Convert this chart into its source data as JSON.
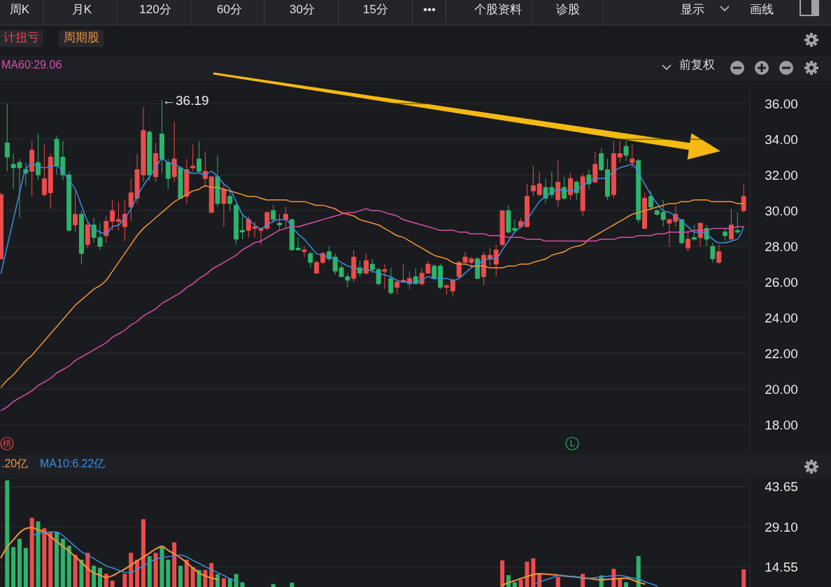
{
  "chart_data": [
    {
      "type": "candlestick",
      "annotations": [
        "周K",
        "月K",
        "120分",
        "60分",
        "30分",
        "15分",
        "•••",
        "个股资料",
        "诊股",
        "显示",
        "画线",
        "计扭亏",
        "周期股",
        "MA60:29.06",
        "前复权",
        "榜",
        "L",
        "←36.19"
      ],
      "categories": [
        null,
        null,
        null,
        null,
        null,
        null,
        null,
        null,
        null,
        null,
        null,
        null,
        null,
        null,
        null,
        null,
        null,
        null,
        null,
        null,
        null,
        null,
        null,
        null,
        null,
        null,
        null,
        null,
        null,
        null,
        null,
        null,
        null,
        null,
        null,
        null,
        null,
        null,
        null,
        null,
        null,
        null,
        null,
        null,
        null,
        null,
        null,
        null,
        null,
        null,
        null,
        null,
        null,
        null,
        null,
        null,
        null,
        null,
        null,
        null,
        null,
        null,
        null,
        null,
        null,
        null,
        null,
        null,
        null,
        null,
        null,
        null,
        null,
        null,
        null,
        null,
        null,
        null,
        null,
        null,
        null,
        null,
        null,
        null,
        null,
        null,
        null,
        null,
        null,
        null,
        null,
        null,
        null,
        null,
        null,
        null,
        null,
        null,
        null,
        null,
        null,
        null,
        null,
        null,
        null,
        null,
        null,
        null,
        null,
        null,
        null,
        null,
        null,
        null,
        null,
        null,
        null,
        null,
        null,
        null,
        null
      ],
      "ohlc": [
        [
          27.3,
          31.0,
          27.3,
          30.9
        ],
        [
          33.8,
          36.0,
          32.2,
          33.0
        ],
        [
          32.6,
          33.2,
          31.2,
          32.4
        ],
        [
          32.7,
          32.9,
          29.6,
          32.4
        ],
        [
          32.3,
          32.7,
          31.4,
          32.1
        ],
        [
          32.2,
          33.9,
          30.8,
          33.4
        ],
        [
          32.7,
          34.3,
          31.7,
          32.0
        ],
        [
          30.9,
          33.7,
          30.8,
          31.8
        ],
        [
          31.0,
          33.2,
          30.1,
          33.0
        ],
        [
          34.0,
          34.2,
          32.0,
          32.5
        ],
        [
          33.0,
          33.9,
          31.7,
          32.0
        ],
        [
          32.0,
          32.2,
          28.8,
          28.9
        ],
        [
          29.2,
          31.1,
          28.8,
          29.8
        ],
        [
          29.8,
          30.0,
          27.0,
          27.6
        ],
        [
          28.1,
          29.4,
          27.9,
          29.2
        ],
        [
          29.2,
          29.6,
          28.2,
          28.5
        ],
        [
          28.5,
          29.3,
          27.8,
          28.0
        ],
        [
          28.6,
          29.7,
          28.2,
          29.4
        ],
        [
          29.4,
          30.6,
          28.9,
          30.0
        ],
        [
          29.4,
          30.5,
          28.9,
          29.5
        ],
        [
          29.1,
          30.6,
          28.3,
          29.8
        ],
        [
          30.2,
          31.8,
          29.4,
          31.0
        ],
        [
          30.7,
          33.2,
          30.4,
          32.3
        ],
        [
          32.0,
          35.8,
          31.6,
          34.5
        ],
        [
          34.4,
          34.5,
          31.7,
          32.0
        ],
        [
          31.9,
          33.8,
          31.6,
          33.2
        ],
        [
          34.3,
          36.19,
          32.1,
          32.9
        ],
        [
          32.7,
          32.9,
          31.2,
          31.8
        ],
        [
          31.9,
          35.0,
          31.6,
          32.9
        ],
        [
          32.4,
          32.5,
          30.7,
          30.7
        ],
        [
          30.8,
          32.9,
          30.4,
          32.3
        ],
        [
          32.4,
          33.7,
          32.2,
          32.5
        ],
        [
          32.9,
          33.9,
          32.1,
          32.2
        ],
        [
          31.8,
          33.3,
          31.3,
          32.2
        ],
        [
          29.9,
          31.9,
          29.9,
          31.9
        ],
        [
          31.9,
          33.1,
          30.2,
          30.4
        ],
        [
          30.4,
          31.5,
          29.1,
          31.2
        ],
        [
          30.8,
          31.1,
          30.0,
          30.4
        ],
        [
          30.3,
          30.4,
          28.1,
          28.4
        ],
        [
          28.9,
          29.8,
          28.4,
          28.8
        ],
        [
          28.9,
          29.7,
          28.5,
          29.5
        ],
        [
          29.0,
          29.4,
          28.5,
          29.1
        ],
        [
          28.9,
          29.0,
          28.1,
          29.0
        ],
        [
          29.0,
          29.9,
          28.9,
          29.9
        ],
        [
          30.0,
          30.3,
          29.3,
          29.5
        ],
        [
          29.3,
          29.8,
          28.9,
          29.2
        ],
        [
          29.5,
          30.2,
          29.0,
          29.8
        ],
        [
          29.5,
          29.5,
          27.8,
          27.8
        ],
        [
          27.9,
          28.5,
          27.8,
          27.8
        ],
        [
          27.7,
          28.0,
          27.4,
          27.8
        ],
        [
          27.6,
          27.7,
          26.8,
          27.1
        ],
        [
          26.5,
          27.2,
          26.5,
          27.1
        ],
        [
          27.1,
          27.7,
          27.0,
          27.6
        ],
        [
          27.7,
          28.0,
          27.2,
          27.3
        ],
        [
          27.4,
          27.6,
          26.4,
          26.6
        ],
        [
          26.8,
          27.0,
          26.3,
          26.3
        ],
        [
          26.3,
          26.5,
          25.7,
          26.1
        ],
        [
          26.2,
          27.8,
          26.0,
          27.4
        ],
        [
          26.8,
          27.2,
          26.3,
          26.5
        ],
        [
          26.5,
          27.6,
          26.4,
          27.2
        ],
        [
          27.0,
          27.3,
          26.5,
          26.7
        ],
        [
          26.7,
          26.8,
          25.8,
          25.9
        ],
        [
          26.6,
          27.0,
          25.6,
          26.7
        ],
        [
          26.2,
          26.8,
          25.3,
          25.4
        ],
        [
          25.7,
          26.1,
          25.3,
          26.0
        ],
        [
          26.0,
          27.0,
          26.0,
          26.1
        ],
        [
          25.9,
          26.6,
          25.6,
          26.2
        ],
        [
          26.3,
          26.8,
          25.9,
          25.9
        ],
        [
          25.9,
          26.8,
          25.8,
          26.5
        ],
        [
          26.5,
          27.2,
          26.5,
          27.0
        ],
        [
          26.9,
          27.0,
          26.1,
          26.2
        ],
        [
          26.9,
          27.0,
          25.6,
          25.7
        ],
        [
          25.7,
          25.9,
          25.3,
          25.8
        ],
        [
          25.5,
          26.2,
          25.2,
          26.1
        ],
        [
          26.3,
          27.2,
          26.2,
          27.1
        ],
        [
          27.1,
          27.7,
          27.1,
          27.4
        ],
        [
          27.1,
          27.4,
          26.8,
          27.3
        ],
        [
          27.3,
          27.4,
          26.2,
          26.2
        ],
        [
          26.3,
          27.7,
          25.8,
          27.5
        ],
        [
          27.3,
          27.9,
          26.9,
          27.5
        ],
        [
          27.0,
          28.1,
          26.3,
          27.8
        ],
        [
          28.1,
          30.0,
          28.0,
          30.0
        ],
        [
          30.0,
          30.3,
          28.7,
          28.8
        ],
        [
          29.0,
          29.5,
          28.7,
          28.9
        ],
        [
          29.1,
          29.6,
          29.0,
          29.4
        ],
        [
          29.1,
          31.5,
          29.1,
          30.8
        ],
        [
          31.1,
          32.5,
          30.8,
          31.4
        ],
        [
          30.9,
          32.2,
          30.8,
          31.5
        ],
        [
          31.3,
          31.8,
          30.4,
          30.7
        ],
        [
          31.3,
          32.2,
          30.7,
          30.9
        ],
        [
          30.6,
          32.8,
          30.2,
          31.6
        ],
        [
          31.3,
          31.9,
          30.6,
          30.7
        ],
        [
          30.9,
          32.1,
          30.6,
          31.8
        ],
        [
          31.6,
          31.7,
          30.6,
          31.0
        ],
        [
          30.0,
          32.1,
          29.7,
          31.9
        ],
        [
          32.0,
          32.3,
          31.2,
          31.5
        ],
        [
          31.6,
          33.3,
          31.6,
          32.6
        ],
        [
          33.2,
          33.5,
          32.2,
          32.3
        ],
        [
          32.3,
          32.9,
          30.6,
          30.8
        ],
        [
          30.9,
          33.9,
          30.7,
          33.2
        ],
        [
          33.0,
          33.9,
          32.7,
          33.2
        ],
        [
          33.6,
          33.9,
          32.8,
          33.1
        ],
        [
          32.7,
          33.7,
          32.4,
          32.9
        ],
        [
          32.8,
          32.9,
          29.3,
          29.5
        ],
        [
          29.0,
          31.0,
          29.0,
          30.7
        ],
        [
          30.8,
          31.1,
          30.0,
          30.2
        ],
        [
          30.0,
          30.1,
          29.7,
          29.8
        ],
        [
          29.9,
          30.6,
          29.1,
          29.5
        ],
        [
          29.3,
          29.5,
          28.0,
          29.5
        ],
        [
          29.4,
          30.3,
          29.1,
          29.8
        ],
        [
          29.5,
          29.5,
          28.1,
          28.2
        ],
        [
          27.9,
          28.9,
          27.7,
          28.4
        ],
        [
          28.5,
          29.2,
          28.3,
          28.4
        ],
        [
          28.5,
          29.3,
          28.0,
          29.3
        ],
        [
          29.0,
          29.2,
          28.0,
          28.4
        ],
        [
          28.0,
          28.2,
          27.1,
          27.3
        ],
        [
          27.1,
          28.1,
          27.0,
          27.7
        ],
        [
          28.8,
          29.0,
          28.3,
          28.6
        ],
        [
          28.4,
          30.1,
          28.4,
          29.2
        ],
        [
          28.9,
          29.9,
          28.7,
          28.8
        ],
        [
          30.0,
          31.5,
          29.9,
          30.8
        ]
      ],
      "colors": [
        "#ec4c4c",
        "#2db46b",
        "#2db46b",
        "#2db46b",
        "#2db46b",
        "#ec4c4c",
        "#2db46b",
        "#ec4c4c",
        "#ec4c4c",
        "#2db46b",
        "#2db46b",
        "#2db46b",
        "#ec4c4c",
        "#2db46b",
        "#ec4c4c",
        "#2db46b",
        "#2db46b",
        "#ec4c4c",
        "#ec4c4c",
        "#ec4c4c",
        "#ec4c4c",
        "#ec4c4c",
        "#ec4c4c",
        "#ec4c4c",
        "#2db46b",
        "#ec4c4c",
        "#2db46b",
        "#2db46b",
        "#ec4c4c",
        "#2db46b",
        "#ec4c4c",
        "#ec4c4c",
        "#2db46b",
        "#ec4c4c",
        "#ec4c4c",
        "#2db46b",
        "#ec4c4c",
        "#2db46b",
        "#2db46b",
        "#2db46b",
        "#ec4c4c",
        "#ec4c4c",
        "#ec4c4c",
        "#ec4c4c",
        "#2db46b",
        "#2db46b",
        "#ec4c4c",
        "#2db46b",
        "#2db46b",
        "#ec4c4c",
        "#2db46b",
        "#ec4c4c",
        "#ec4c4c",
        "#2db46b",
        "#2db46b",
        "#2db46b",
        "#2db46b",
        "#ec4c4c",
        "#2db46b",
        "#ec4c4c",
        "#2db46b",
        "#2db46b",
        "#ec4c4c",
        "#2db46b",
        "#ec4c4c",
        "#ec4c4c",
        "#ec4c4c",
        "#2db46b",
        "#ec4c4c",
        "#ec4c4c",
        "#2db46b",
        "#2db46b",
        "#ec4c4c",
        "#ec4c4c",
        "#ec4c4c",
        "#ec4c4c",
        "#ec4c4c",
        "#2db46b",
        "#ec4c4c",
        "#ec4c4c",
        "#ec4c4c",
        "#ec4c4c",
        "#2db46b",
        "#2db46b",
        "#ec4c4c",
        "#ec4c4c",
        "#ec4c4c",
        "#ec4c4c",
        "#2db46b",
        "#2db46b",
        "#ec4c4c",
        "#2db46b",
        "#ec4c4c",
        "#2db46b",
        "#ec4c4c",
        "#2db46b",
        "#ec4c4c",
        "#2db46b",
        "#2db46b",
        "#ec4c4c",
        "#ec4c4c",
        "#2db46b",
        "#ec4c4c",
        "#2db46b",
        "#ec4c4c",
        "#2db46b",
        "#2db46b",
        "#2db46b",
        "#ec4c4c",
        "#ec4c4c",
        "#2db46b",
        "#ec4c4c",
        "#2db46b",
        "#ec4c4c",
        "#2db46b",
        "#2db46b",
        "#ec4c4c",
        "#2db46b",
        "#ec4c4c",
        "#2db46b",
        "#ec4c4c"
      ],
      "series": [
        {
          "type": "line",
          "color": "#3b8fe3",
          "values": [
            26.5,
            28.0,
            29.5,
            31.0,
            32.3,
            32.6,
            32.5,
            32.4,
            32.5,
            32.5,
            32.2,
            31.7,
            31.2,
            30.3,
            29.4,
            29.0,
            28.8,
            28.7,
            29.1,
            29.2,
            29.6,
            30.1,
            30.8,
            31.4,
            31.9,
            32.4,
            32.9,
            32.7,
            32.6,
            32.4,
            32.2,
            32.1,
            32.1,
            32.0,
            32.2,
            31.9,
            31.5,
            31.2,
            30.5,
            29.8,
            29.5,
            29.2,
            29.0,
            29.2,
            29.4,
            29.5,
            29.5,
            29.1,
            28.7,
            28.4,
            28.0,
            27.6,
            27.5,
            27.4,
            27.3,
            27.1,
            26.9,
            26.8,
            26.7,
            26.7,
            26.6,
            26.5,
            26.4,
            26.3,
            26.1,
            26.0,
            26.0,
            26.0,
            26.1,
            26.3,
            26.2,
            26.2,
            26.2,
            26.1,
            26.2,
            26.5,
            26.8,
            27.0,
            27.2,
            27.3,
            27.3,
            27.8,
            28.3,
            28.8,
            29.1,
            29.5,
            30.0,
            30.5,
            30.8,
            31.0,
            31.2,
            31.1,
            31.1,
            31.2,
            31.4,
            31.6,
            31.8,
            31.8,
            31.9,
            32.2,
            32.4,
            32.5,
            32.6,
            32.1,
            31.5,
            30.9,
            30.4,
            30.0,
            29.9,
            29.7,
            29.4,
            29.1,
            28.8,
            28.8,
            28.7,
            28.4,
            28.2,
            28.2,
            28.3,
            28.4,
            29.1
          ]
        },
        {
          "type": "line",
          "color": "#f0953a",
          "values": [
            20.1,
            20.5,
            20.8,
            21.2,
            21.6,
            21.9,
            22.3,
            22.7,
            23.1,
            23.5,
            23.9,
            24.3,
            24.7,
            25.0,
            25.3,
            25.6,
            25.8,
            26.1,
            26.6,
            27.1,
            27.6,
            28.1,
            28.6,
            29.0,
            29.3,
            29.6,
            29.9,
            30.2,
            30.5,
            30.7,
            30.9,
            31.1,
            31.2,
            31.4,
            31.3,
            31.3,
            31.2,
            31.1,
            31.0,
            30.9,
            30.8,
            30.8,
            30.7,
            30.6,
            30.6,
            30.6,
            30.6,
            30.5,
            30.5,
            30.5,
            30.4,
            30.3,
            30.3,
            30.2,
            30.1,
            29.9,
            29.8,
            29.7,
            29.5,
            29.4,
            29.3,
            29.2,
            29.0,
            28.8,
            28.6,
            28.5,
            28.3,
            28.1,
            27.9,
            27.7,
            27.5,
            27.4,
            27.3,
            27.1,
            27.0,
            27.0,
            26.9,
            26.9,
            26.9,
            26.8,
            26.8,
            26.8,
            26.9,
            26.9,
            27.0,
            27.0,
            27.1,
            27.2,
            27.3,
            27.5,
            27.6,
            27.7,
            27.9,
            28.0,
            28.1,
            28.4,
            28.6,
            28.8,
            29.0,
            29.2,
            29.4,
            29.6,
            29.8,
            29.9,
            30.0,
            30.1,
            30.2,
            30.3,
            30.4,
            30.4,
            30.5,
            30.5,
            30.6,
            30.6,
            30.6,
            30.5,
            30.5,
            30.5,
            30.5,
            30.4,
            30.4
          ]
        },
        {
          "type": "line",
          "color": "#d94fa6",
          "values": [
            18.8,
            19.0,
            19.3,
            19.5,
            19.7,
            19.9,
            20.2,
            20.4,
            20.6,
            20.9,
            21.1,
            21.3,
            21.6,
            21.8,
            22.0,
            22.2,
            22.4,
            22.6,
            22.9,
            23.1,
            23.3,
            23.6,
            23.8,
            24.1,
            24.3,
            24.5,
            24.8,
            25.0,
            25.2,
            25.4,
            25.7,
            25.9,
            26.2,
            26.4,
            26.7,
            26.9,
            27.1,
            27.3,
            27.5,
            27.8,
            28.0,
            28.2,
            28.3,
            28.5,
            28.7,
            28.9,
            29.0,
            29.1,
            29.1,
            29.2,
            29.3,
            29.4,
            29.5,
            29.6,
            29.7,
            29.8,
            29.9,
            29.9,
            30.0,
            30.1,
            30.0,
            30.0,
            29.9,
            29.8,
            29.7,
            29.5,
            29.4,
            29.3,
            29.2,
            29.1,
            29.0,
            28.9,
            28.9,
            28.9,
            28.8,
            28.8,
            28.7,
            28.7,
            28.7,
            28.6,
            28.6,
            28.6,
            28.5,
            28.5,
            28.5,
            28.4,
            28.4,
            28.4,
            28.3,
            28.3,
            28.3,
            28.3,
            28.3,
            28.3,
            28.3,
            28.3,
            28.3,
            28.4,
            28.4,
            28.4,
            28.5,
            28.5,
            28.5,
            28.6,
            28.6,
            28.6,
            28.7,
            28.7,
            28.8,
            28.8,
            28.8,
            28.8,
            28.9,
            28.9,
            28.9,
            29.0,
            29.0,
            29.0,
            29.0,
            29.1,
            29.1
          ]
        }
      ],
      "ylim": [
        16.4,
        37.1
      ],
      "yticks": [
        {
          "value": 18,
          "label": "18.00"
        },
        {
          "value": 20,
          "label": "20.00"
        },
        {
          "value": 22,
          "label": "22.00"
        },
        {
          "value": 24,
          "label": "24.00"
        },
        {
          "value": 26,
          "label": "26.00"
        },
        {
          "value": 28,
          "label": "28.00"
        },
        {
          "value": 30,
          "label": "30.00"
        },
        {
          "value": 32,
          "label": "32.00"
        },
        {
          "value": 34,
          "label": "34.00"
        },
        {
          "value": 36,
          "label": "36.00"
        }
      ],
      "tick_labels": "y",
      "grid": "y"
    },
    {
      "type": "bar",
      "annotations": [
        ".20亿",
        "MA10:6.22亿"
      ],
      "categories": [
        null,
        null,
        null,
        null,
        null,
        null,
        null,
        null,
        null,
        null,
        null,
        null,
        null,
        null,
        null,
        null,
        null,
        null,
        null,
        null,
        null,
        null,
        null,
        null,
        null,
        null,
        null,
        null,
        null,
        null,
        null,
        null,
        null,
        null,
        null,
        null,
        null,
        null,
        null,
        null,
        null,
        null,
        null,
        null,
        null,
        null,
        null,
        null,
        null,
        null,
        null,
        null,
        null,
        null,
        null,
        null,
        null,
        null,
        null,
        null,
        null,
        null,
        null,
        null,
        null,
        null,
        null,
        null,
        null,
        null,
        null,
        null,
        null,
        null,
        null,
        null,
        null,
        null,
        null,
        null,
        null,
        null,
        null,
        null,
        null,
        null,
        null,
        null,
        null,
        null,
        null,
        null,
        null,
        null,
        null,
        null,
        null,
        null,
        null,
        null,
        null,
        null,
        null,
        null,
        null,
        null,
        null,
        null,
        null,
        null,
        null,
        null,
        null,
        null,
        null,
        null,
        null,
        null,
        null,
        null,
        null
      ],
      "values": [
        null,
        46.0,
        21.8,
        24.8,
        21.5,
        32.4,
        31.1,
        28.6,
        27.3,
        27.3,
        24.8,
        22.3,
        19.0,
        17.2,
        19.7,
        15.0,
        14.2,
        12.1,
        9.6,
        null,
        12.1,
        19.7,
        17.2,
        31.9,
        18.5,
        19.7,
        22.3,
        17.2,
        23.5,
        15.0,
        17.2,
        14.5,
        13.5,
        13.5,
        16.0,
        12.0,
        10.5,
        10.5,
        12.0,
        9.0,
        null,
        null,
        null,
        null,
        8.4,
        null,
        null,
        8.9,
        null,
        null,
        null,
        null,
        null,
        null,
        null,
        null,
        null,
        null,
        null,
        null,
        null,
        null,
        null,
        null,
        null,
        null,
        null,
        null,
        null,
        null,
        null,
        null,
        null,
        null,
        null,
        null,
        null,
        null,
        null,
        null,
        null,
        17.0,
        11.6,
        9.0,
        10.0,
        16.5,
        17.7,
        12.0,
        null,
        null,
        11.0,
        null,
        null,
        null,
        12.1,
        null,
        null,
        11.5,
        null,
        13.9,
        10.5,
        9.0,
        null,
        18.5,
        null,
        null,
        null,
        null,
        null,
        null,
        null,
        null,
        null,
        null,
        null,
        null,
        null,
        null,
        null,
        null,
        13.7
      ],
      "colors": [
        null,
        "#2db46b",
        "#2db46b",
        "#2db46b",
        "#2db46b",
        "#ec4c4c",
        "#2db46b",
        "#ec4c4c",
        "#ec4c4c",
        "#2db46b",
        "#2db46b",
        "#2db46b",
        "#ec4c4c",
        "#2db46b",
        "#ec4c4c",
        "#2db46b",
        "#2db46b",
        "#ec4c4c",
        "#ec4c4c",
        null,
        "#ec4c4c",
        "#ec4c4c",
        "#ec4c4c",
        "#ec4c4c",
        "#2db46b",
        "#ec4c4c",
        "#2db46b",
        "#2db46b",
        "#ec4c4c",
        "#2db46b",
        "#ec4c4c",
        "#ec4c4c",
        "#2db46b",
        "#ec4c4c",
        "#ec4c4c",
        "#2db46b",
        "#ec4c4c",
        "#2db46b",
        "#2db46b",
        "#2db46b",
        null,
        null,
        null,
        null,
        "#2db46b",
        null,
        null,
        "#2db46b",
        null,
        null,
        null,
        null,
        null,
        null,
        null,
        null,
        null,
        null,
        null,
        null,
        null,
        null,
        null,
        null,
        null,
        null,
        null,
        null,
        null,
        null,
        null,
        null,
        null,
        null,
        null,
        null,
        null,
        null,
        null,
        null,
        null,
        "#ec4c4c",
        "#2db46b",
        "#2db46b",
        "#ec4c4c",
        "#ec4c4c",
        "#ec4c4c",
        "#ec4c4c",
        null,
        null,
        "#ec4c4c",
        null,
        null,
        null,
        "#ec4c4c",
        null,
        null,
        "#2db46b",
        null,
        "#ec4c4c",
        "#ec4c4c",
        "#2db46b",
        null,
        "#2db46b",
        null,
        null,
        null,
        null,
        null,
        null,
        null,
        null,
        null,
        null,
        null,
        null,
        null,
        null,
        null,
        null,
        "#ec4c4c"
      ],
      "series": [
        {
          "type": "line",
          "color": "#f0953a",
          "values": [
            18.0,
            21.8,
            24.4,
            27.0,
            28.5,
            28.8,
            28.0,
            27.3,
            25.6,
            23.8,
            22.0,
            20.3,
            18.3,
            16.3,
            14.0,
            12.4,
            11.6,
            10.8,
            11.4,
            12.6,
            13.8,
            15.2,
            16.7,
            18.2,
            19.6,
            21.1,
            22.0,
            20.6,
            19.3,
            17.9,
            16.1,
            14.2,
            12.4,
            11.3,
            10.6,
            10.0,
            null,
            null,
            null,
            null,
            null,
            null,
            null,
            null,
            null,
            null,
            null,
            null,
            null,
            null,
            null,
            null,
            null,
            null,
            null,
            null,
            null,
            null,
            null,
            null,
            null,
            null,
            null,
            null,
            null,
            null,
            null,
            null,
            null,
            null,
            null,
            null,
            null,
            null,
            null,
            null,
            null,
            null,
            null,
            null,
            null,
            8.0,
            8.9,
            9.6,
            10.4,
            11.1,
            11.8,
            12.1,
            12.0,
            11.8,
            11.6,
            11.3,
            11.1,
            10.9,
            10.6,
            10.4,
            10.1,
            9.9,
            10.1,
            10.2,
            10.4,
            10.5,
            9.9,
            9.0,
            8.4,
            null,
            null,
            null,
            null,
            null,
            null,
            null,
            null,
            null,
            null,
            null,
            null,
            null,
            null,
            null,
            null
          ]
        },
        {
          "type": "line",
          "color": "#3b8fe3",
          "values": [
            null,
            null,
            null,
            null,
            null,
            26.0,
            26.6,
            27.2,
            27.3,
            27.2,
            26.0,
            24.0,
            22.0,
            20.1,
            18.8,
            17.6,
            16.3,
            15.0,
            14.2,
            13.4,
            12.6,
            12.5,
            13.7,
            14.9,
            16.2,
            17.5,
            17.9,
            18.3,
            18.6,
            18.9,
            18.2,
            17.0,
            15.9,
            14.7,
            13.6,
            12.6,
            11.5,
            10.3,
            9.2,
            null,
            null,
            null,
            null,
            null,
            null,
            null,
            null,
            null,
            null,
            null,
            null,
            null,
            null,
            null,
            null,
            null,
            null,
            null,
            null,
            null,
            null,
            null,
            null,
            null,
            null,
            null,
            null,
            null,
            null,
            null,
            null,
            null,
            null,
            null,
            null,
            null,
            null,
            null,
            null,
            null,
            null,
            null,
            null,
            null,
            null,
            null,
            8.4,
            9.1,
            9.9,
            10.6,
            11.5,
            11.4,
            11.1,
            10.9,
            10.7,
            10.5,
            10.7,
            11.0,
            11.2,
            11.4,
            11.5,
            11.1,
            10.6,
            10.2,
            9.2,
            8.5,
            7.7,
            null,
            null,
            null,
            null,
            null,
            null,
            null,
            null,
            null,
            null,
            null,
            null,
            null,
            null
          ]
        }
      ],
      "ylim": [
        7.3,
        46.4
      ],
      "yticks": [
        {
          "value": 14.55,
          "label": "14.55"
        },
        {
          "value": 29.1,
          "label": "29.10"
        },
        {
          "value": 43.65,
          "label": "43.65"
        }
      ],
      "tick_labels": "y",
      "grid": "y"
    }
  ]
}
